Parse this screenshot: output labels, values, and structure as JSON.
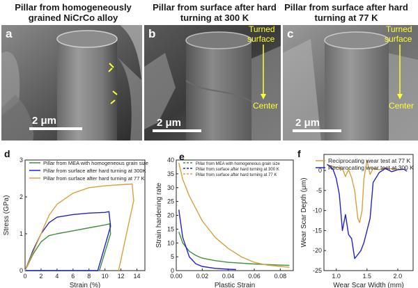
{
  "panels": [
    {
      "letter": "a",
      "title_line1": "Pillar from homogeneously",
      "title_line2": "grained NiCrCo alloy",
      "scale_bar": "2 μm"
    },
    {
      "letter": "b",
      "title_line1": "Pillar from surface after hard",
      "title_line2": "turning at 300 K",
      "scale_bar": "2 μm",
      "annot_top1": "Turned",
      "annot_top2": "surface",
      "annot_bottom": "Center"
    },
    {
      "letter": "c",
      "title_line1": "Pillar from surface after hard",
      "title_line2": "turning at 77 K",
      "scale_bar": "2 μm",
      "annot_top1": "Turned",
      "annot_top2": "surface",
      "annot_bottom": "Center"
    }
  ],
  "colors": {
    "green": "#3f8f3a",
    "blue": "#2222cc",
    "orange": "#d9a03c",
    "annotation": "#ffff33"
  },
  "chart_data": [
    {
      "panel": "d",
      "type": "line",
      "xlabel": "Strain (%)",
      "ylabel": "Stress (GPa)",
      "xlim": [
        0,
        15
      ],
      "ylim": [
        0,
        3
      ],
      "xticks": [
        "0",
        "2",
        "4",
        "6",
        "8",
        "10",
        "12",
        "14"
      ],
      "yticks": [
        "0",
        "1",
        "2",
        "3"
      ],
      "legend": [
        "Pillar from MEA with homogeneous grain size",
        "Pillar from surface after hard turning at 300K",
        "Pillar from surface after hard turning at 77 K"
      ],
      "series": [
        {
          "name": "Pillar from MEA with homogeneous grain size",
          "color": "#3f8f3a",
          "x": [
            0,
            1,
            2,
            3,
            4,
            6,
            8,
            10,
            10.6,
            10.7,
            9.3,
            0
          ],
          "y": [
            0,
            0.45,
            0.78,
            0.95,
            1.0,
            1.08,
            1.16,
            1.24,
            1.27,
            1.0,
            0,
            0
          ]
        },
        {
          "name": "Pillar from surface after hard turning at 300K",
          "color": "#2222cc",
          "x": [
            0,
            1,
            2,
            3,
            4,
            6,
            8,
            10,
            10.5,
            10.7,
            9.1,
            0
          ],
          "y": [
            0,
            0.55,
            1.0,
            1.3,
            1.45,
            1.52,
            1.56,
            1.58,
            1.6,
            1.2,
            0,
            0
          ]
        },
        {
          "name": "Pillar from surface after hard turning at 77 K",
          "color": "#d9a03c",
          "x": [
            0,
            1,
            2,
            3,
            4,
            6,
            8,
            10,
            12,
            13.4,
            13.6,
            11.7
          ],
          "y": [
            0,
            0.5,
            1.0,
            1.5,
            1.8,
            2.1,
            2.25,
            2.3,
            2.33,
            2.35,
            1.9,
            0
          ]
        }
      ]
    },
    {
      "panel": "e",
      "type": "line",
      "xlabel": "Plastic Strain",
      "ylabel": "Strain hardening rate",
      "xlim": [
        0,
        0.09
      ],
      "ylim": [
        0,
        40
      ],
      "xticks": [
        "0.00",
        "0.02",
        "0.04",
        "0.06",
        "0.08"
      ],
      "yticks": [
        "0",
        "5",
        "10",
        "15",
        "20",
        "25",
        "30",
        "35",
        "40"
      ],
      "legend": [
        "Pillar from MEA with homogeneous grain size",
        "Pillar from surface after hard turning at 300 K",
        "Pillar from surface after hard turning at 77 K"
      ],
      "series": [
        {
          "name": "Pillar from MEA with homogeneous grain size",
          "color": "#3f8f3a",
          "x": [
            0.002,
            0.005,
            0.01,
            0.015,
            0.02,
            0.03,
            0.04,
            0.06,
            0.08,
            0.087
          ],
          "y": [
            14,
            10,
            7,
            5.5,
            4.5,
            3.6,
            3.0,
            2.4,
            2.0,
            1.9
          ]
        },
        {
          "name": "Pillar from surface after hard turning at 300 K",
          "color": "#2222cc",
          "x": [
            0.002,
            0.005,
            0.01,
            0.015,
            0.02,
            0.03,
            0.04,
            0.046
          ],
          "y": [
            22,
            12,
            5,
            2.5,
            1.5,
            0.8,
            0.5,
            0.4
          ]
        },
        {
          "name": "Pillar from surface after hard turning at 77 K",
          "color": "#d9a03c",
          "x": [
            0.002,
            0.005,
            0.01,
            0.02,
            0.03,
            0.04,
            0.05,
            0.06,
            0.07,
            0.08,
            0.087
          ],
          "y": [
            39,
            33,
            27,
            18,
            12,
            8,
            5,
            3,
            2,
            1.5,
            1.2
          ]
        }
      ]
    },
    {
      "panel": "f",
      "type": "line",
      "xlabel": "Wear Scar Width (mm)",
      "ylabel": "Wear Scar Depth (μm)",
      "xlim": [
        0.8,
        2.25
      ],
      "ylim": [
        -25,
        4
      ],
      "xticks": [
        "1.0",
        "1.5",
        "2.0"
      ],
      "yticks": [
        "0",
        "-5",
        "-10",
        "-15",
        "-20",
        "-25"
      ],
      "legend": [
        "Reciprocating wear test at 77 K",
        "Reciprocating wear test at 300 K"
      ],
      "series": [
        {
          "name": "Reciprocating wear test at 77 K",
          "color": "#d9a03c",
          "x": [
            0.85,
            0.9,
            1.0,
            1.1,
            1.15,
            1.2,
            1.25,
            1.3,
            1.35,
            1.38,
            1.42,
            1.45,
            1.5,
            1.55,
            1.6,
            1.7,
            1.8,
            1.9,
            2.0
          ],
          "y": [
            1.5,
            1.2,
            0.8,
            0.5,
            -1.5,
            0.2,
            -1.8,
            -5,
            -12,
            -13,
            -10,
            -2,
            2.5,
            -1,
            0.5,
            0.2,
            0.6,
            0.4,
            0.5
          ]
        },
        {
          "name": "Reciprocating wear test at 300 K",
          "color": "#2222cc",
          "x": [
            0.85,
            0.9,
            0.95,
            1.0,
            1.05,
            1.1,
            1.15,
            1.2,
            1.25,
            1.3,
            1.35,
            1.4,
            1.45,
            1.5,
            1.55,
            1.6,
            1.7,
            1.8,
            1.9,
            2.0,
            2.1,
            2.15
          ],
          "y": [
            1.5,
            1.0,
            0.2,
            -2,
            -6,
            -15,
            -11,
            -16,
            -17,
            -22,
            -21,
            -20,
            -18,
            -15,
            -12,
            -3,
            -0.5,
            0.5,
            -0.3,
            0.2,
            0.3,
            -0.2
          ]
        }
      ]
    }
  ]
}
